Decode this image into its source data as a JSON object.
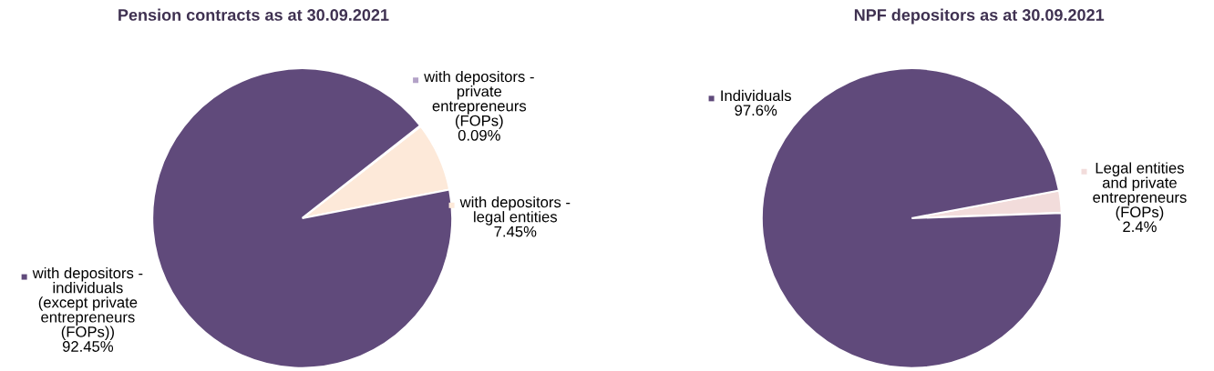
{
  "chart_data": [
    {
      "type": "pie",
      "title": "Pension contracts as at 30.09.2021",
      "categories": [
        "with depositors - legal entities",
        "with depositors - private entrepreneurs (FOPs)",
        "with depositors - individuals (except private entrepreneurs (FOPs))"
      ],
      "values": [
        7.45,
        0.09,
        92.45
      ],
      "value_labels": [
        "7.45%",
        "0.09%",
        "92.45%"
      ],
      "colors": [
        "#fde9d9",
        "#b3a2c7",
        "#604a7b"
      ],
      "legend": "right"
    },
    {
      "type": "pie",
      "title": "NPF depositors as at 30.09.2021",
      "categories": [
        "Legal entities and private entrepreneurs (FOPs)",
        "Individuals"
      ],
      "values": [
        2.4,
        97.6
      ],
      "value_labels": [
        "2.4%",
        "97.6%"
      ],
      "colors": [
        "#f2dcdb",
        "#604a7b"
      ],
      "legend": "right"
    }
  ]
}
